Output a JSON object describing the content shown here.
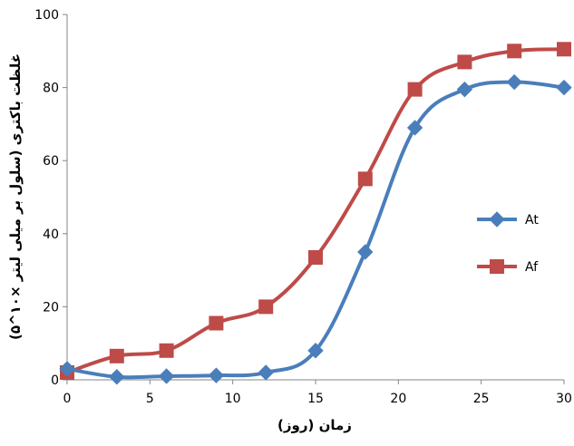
{
  "chart_data": {
    "type": "line",
    "title": "",
    "xlabel": "زمان (روز)",
    "ylabel": "غلظت باکتری (سلول بر میلی لیتر ×۱۰^۵)",
    "xlim": [
      0,
      30
    ],
    "ylim": [
      0,
      100
    ],
    "x_ticks": [
      0,
      5,
      10,
      15,
      20,
      25,
      30
    ],
    "y_ticks": [
      0,
      20,
      40,
      60,
      80,
      100
    ],
    "grid": false,
    "legend_position": "right",
    "series": [
      {
        "name": "At",
        "color": "#4a7ebb",
        "marker": "diamond",
        "x": [
          0,
          3,
          6,
          9,
          12,
          15,
          18,
          21,
          24,
          27,
          30
        ],
        "y": [
          3,
          0.8,
          1,
          1.2,
          2,
          8,
          35,
          69,
          79.5,
          81.5,
          80
        ]
      },
      {
        "name": "Af",
        "color": "#be4b48",
        "marker": "square",
        "x": [
          0,
          3,
          6,
          9,
          12,
          15,
          18,
          21,
          24,
          27,
          30
        ],
        "y": [
          2,
          6.5,
          8,
          15.5,
          20,
          33.5,
          55,
          79.5,
          87,
          90,
          90.5
        ]
      }
    ]
  }
}
